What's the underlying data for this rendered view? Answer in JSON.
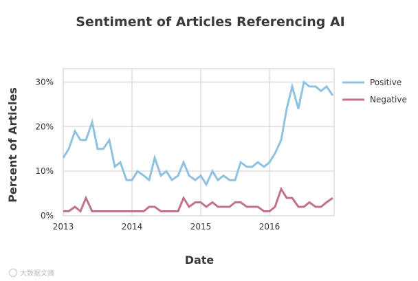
{
  "chart_data": {
    "type": "line",
    "title": "Sentiment of Articles Referencing AI",
    "xlabel": "Date",
    "ylabel": "Percent of Articles",
    "x_ticks": [
      "2013",
      "2014",
      "2015",
      "2016"
    ],
    "x_tick_values": [
      2013,
      2014,
      2015,
      2016
    ],
    "xlim": [
      2013,
      2016.94
    ],
    "y_ticks": [
      "0%",
      "10%",
      "20%",
      "30%"
    ],
    "y_tick_values": [
      0,
      10,
      20,
      30
    ],
    "ylim": [
      0,
      33
    ],
    "grid": true,
    "legend_position": "right",
    "x": [
      2013.0,
      2013.08,
      2013.17,
      2013.25,
      2013.33,
      2013.42,
      2013.5,
      2013.58,
      2013.67,
      2013.75,
      2013.83,
      2013.92,
      2014.0,
      2014.08,
      2014.17,
      2014.25,
      2014.33,
      2014.42,
      2014.5,
      2014.58,
      2014.67,
      2014.75,
      2014.83,
      2014.92,
      2015.0,
      2015.08,
      2015.17,
      2015.25,
      2015.33,
      2015.42,
      2015.5,
      2015.58,
      2015.67,
      2015.75,
      2015.83,
      2015.92,
      2016.0,
      2016.08,
      2016.17,
      2016.25,
      2016.33,
      2016.42,
      2016.5,
      2016.58,
      2016.67,
      2016.75,
      2016.83,
      2016.92
    ],
    "series": [
      {
        "name": "Positive",
        "color": "#8fc1e0",
        "values": [
          13,
          15,
          19,
          17,
          17,
          21,
          15,
          15,
          17,
          11,
          12,
          8,
          8,
          10,
          9,
          8,
          13,
          9,
          10,
          8,
          9,
          12,
          9,
          8,
          9,
          7,
          10,
          8,
          9,
          8,
          8,
          12,
          11,
          11,
          12,
          11,
          12,
          14,
          17,
          24,
          29,
          24,
          30,
          29,
          29,
          28,
          29,
          27
        ]
      },
      {
        "name": "Negative",
        "color": "#c0728a",
        "values": [
          1,
          1,
          2,
          1,
          4,
          1,
          1,
          1,
          1,
          1,
          1,
          1,
          1,
          1,
          1,
          2,
          2,
          1,
          1,
          1,
          1,
          4,
          2,
          3,
          3,
          2,
          3,
          2,
          2,
          2,
          3,
          3,
          2,
          2,
          2,
          1,
          1,
          2,
          6,
          4,
          4,
          2,
          2,
          3,
          2,
          2,
          3,
          4
        ]
      }
    ]
  },
  "watermark": "大数据文摘"
}
